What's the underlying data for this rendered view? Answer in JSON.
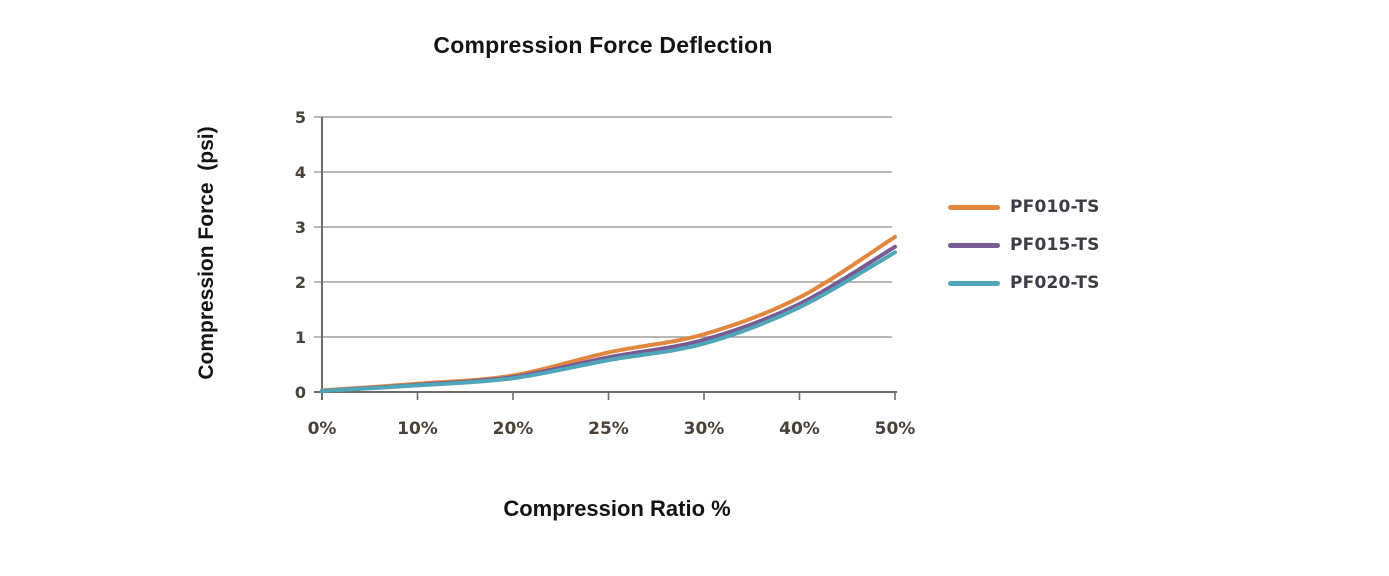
{
  "chart_data": {
    "type": "line",
    "title": "Compression Force Deflection",
    "xlabel": "Compression Ratio %",
    "ylabel": "Compression Force  (psi)",
    "categories": [
      "0%",
      "10%",
      "20%",
      "25%",
      "30%",
      "40%",
      "50%"
    ],
    "y_ticks": [
      0,
      1,
      2,
      3,
      4,
      5
    ],
    "ylim": [
      0,
      5
    ],
    "grid": "horizontal",
    "legend_position": "right",
    "series": [
      {
        "name": "PF010-TS",
        "color": "#E1873F",
        "values": [
          0.03,
          0.15,
          0.3,
          0.72,
          1.05,
          1.72,
          2.82
        ]
      },
      {
        "name": "PF015-TS",
        "color": "#7A5A92",
        "values": [
          0.02,
          0.13,
          0.27,
          0.63,
          0.95,
          1.6,
          2.64
        ]
      },
      {
        "name": "PF020-TS",
        "color": "#4EA6B8",
        "values": [
          0.02,
          0.12,
          0.25,
          0.58,
          0.88,
          1.54,
          2.54
        ]
      }
    ]
  },
  "colors": {
    "grid_line": "#a3a09c",
    "axis_line": "#6f6c68",
    "tick_label": "#4a4238",
    "title_text": "#141414"
  }
}
